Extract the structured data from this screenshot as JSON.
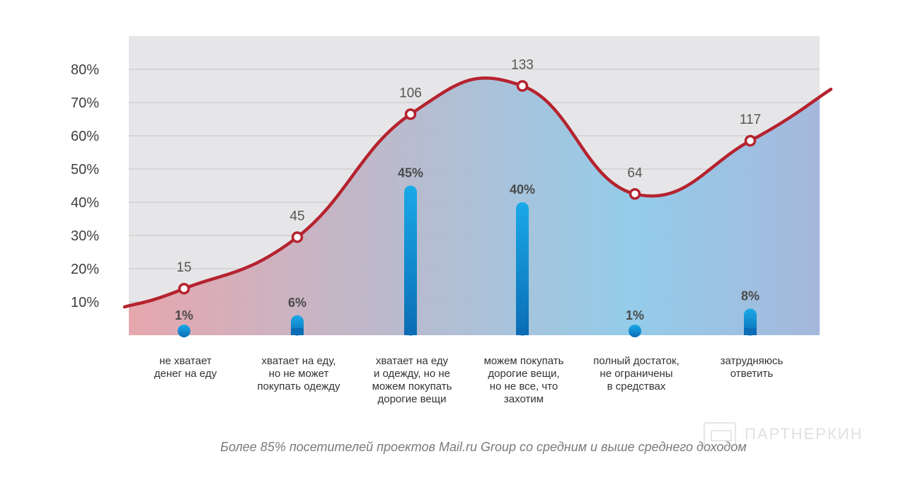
{
  "chart_data": {
    "type": "bar",
    "categories": [
      [
        "не хватает",
        "денег на еду"
      ],
      [
        "хватает на еду,",
        "но не может",
        "покупать одежду"
      ],
      [
        "хватает на еду",
        "и одежду, но не",
        "можем покупать",
        "дорогие вещи"
      ],
      [
        "можем покупать",
        "дорогие вещи,",
        "но не все, что",
        "захотим"
      ],
      [
        "полный достаток,",
        "не ограничены",
        "в средствах"
      ],
      [
        "затрудняюсь",
        "ответить"
      ]
    ],
    "series": [
      {
        "type": "bar",
        "values": [
          1,
          6,
          45,
          40,
          1,
          8
        ],
        "labels": [
          "1%",
          "6%",
          "45%",
          "40%",
          "1%",
          "8%"
        ]
      },
      {
        "type": "line",
        "values": [
          14,
          29.5,
          66.5,
          75,
          42.5,
          58.5
        ],
        "labels": [
          "15",
          "45",
          "106",
          "133",
          "64",
          "117"
        ]
      }
    ],
    "yticks": [
      "10%",
      "20%",
      "30%",
      "40%",
      "50%",
      "60%",
      "70%",
      "80%"
    ],
    "ylim": [
      0,
      90
    ],
    "grid": true,
    "colors": {
      "line": "#b5232f",
      "bar_top": "#1aa9e8",
      "bar_bottom": "#0b6db5",
      "area_left": "#e7a3aa",
      "area_mid": "#8fcbea",
      "area_right": "#a3b4da",
      "plot_bg": "#e6e6e8",
      "gridline": "#c4c4c8"
    }
  },
  "caption": "Более 85% посетителей проектов Mail.ru Group со средним и выше среднего доходом",
  "watermark": "ПАРТНЕРКИН"
}
